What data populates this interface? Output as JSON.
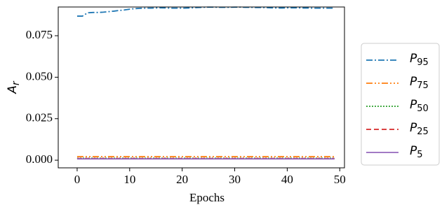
{
  "chart_data": {
    "type": "line",
    "ylabel": "Ar",
    "xlabel": "Epochs",
    "x": [
      0,
      1,
      2,
      3,
      4,
      5,
      6,
      7,
      8,
      9,
      10,
      11,
      12,
      13,
      14,
      15,
      16,
      17,
      18,
      19,
      20,
      21,
      22,
      23,
      24,
      25,
      26,
      27,
      28,
      29,
      30,
      31,
      32,
      33,
      34,
      35,
      36,
      37,
      38,
      39,
      40,
      41,
      42,
      43,
      44,
      45,
      46,
      47,
      48,
      49
    ],
    "series": [
      {
        "name": "P95",
        "color": "#1f77b4",
        "linestyle": "-.",
        "values": [
          0.0868,
          0.0868,
          0.0888,
          0.089,
          0.089,
          0.0892,
          0.0895,
          0.0898,
          0.0902,
          0.0905,
          0.091,
          0.0913,
          0.0915,
          0.0916,
          0.0916,
          0.0917,
          0.0918,
          0.0917,
          0.0916,
          0.0916,
          0.0916,
          0.0917,
          0.0918,
          0.092,
          0.0921,
          0.0922,
          0.0922,
          0.0921,
          0.0921,
          0.0921,
          0.0922,
          0.0922,
          0.0921,
          0.0921,
          0.092,
          0.092,
          0.0919,
          0.0918,
          0.0917,
          0.0917,
          0.0918,
          0.0918,
          0.0918,
          0.0917,
          0.0917,
          0.0916,
          0.0916,
          0.0916,
          0.0916,
          0.0916
        ]
      },
      {
        "name": "P75",
        "color": "#ff7f0e",
        "linestyle": "-..",
        "values": [
          0.0022,
          0.0022,
          0.0022,
          0.0022,
          0.0022,
          0.0022,
          0.0022,
          0.0022,
          0.0022,
          0.0022,
          0.0022,
          0.0022,
          0.0022,
          0.0022,
          0.0022,
          0.0022,
          0.0022,
          0.0022,
          0.0022,
          0.0022,
          0.0022,
          0.0022,
          0.0022,
          0.0022,
          0.0022,
          0.0022,
          0.0022,
          0.0022,
          0.0022,
          0.0022,
          0.0022,
          0.0022,
          0.0022,
          0.0022,
          0.0022,
          0.0022,
          0.0022,
          0.0022,
          0.0022,
          0.0022,
          0.0022,
          0.0022,
          0.0022,
          0.0022,
          0.0022,
          0.0022,
          0.0022,
          0.0022,
          0.0022,
          0.0022
        ]
      },
      {
        "name": "P50",
        "color": "#2ca02c",
        "linestyle": ":",
        "values": [
          0.0012,
          0.0012,
          0.0012,
          0.0012,
          0.0012,
          0.0012,
          0.0012,
          0.0012,
          0.0012,
          0.0012,
          0.0012,
          0.0012,
          0.0012,
          0.0012,
          0.0012,
          0.0012,
          0.0012,
          0.0012,
          0.0012,
          0.0012,
          0.0012,
          0.0012,
          0.0012,
          0.0012,
          0.0012,
          0.0012,
          0.0012,
          0.0012,
          0.0012,
          0.0012,
          0.0012,
          0.0012,
          0.0012,
          0.0012,
          0.0012,
          0.0012,
          0.0012,
          0.0012,
          0.0012,
          0.0012,
          0.0012,
          0.0012,
          0.0012,
          0.0012,
          0.0012,
          0.0012,
          0.0012,
          0.0012,
          0.0012,
          0.0012
        ]
      },
      {
        "name": "P25",
        "color": "#d62728",
        "linestyle": "--",
        "values": [
          0.001,
          0.001,
          0.001,
          0.001,
          0.001,
          0.001,
          0.001,
          0.001,
          0.001,
          0.001,
          0.001,
          0.001,
          0.001,
          0.001,
          0.001,
          0.001,
          0.001,
          0.001,
          0.001,
          0.001,
          0.001,
          0.001,
          0.001,
          0.001,
          0.001,
          0.001,
          0.001,
          0.001,
          0.001,
          0.001,
          0.001,
          0.001,
          0.001,
          0.001,
          0.001,
          0.001,
          0.001,
          0.001,
          0.001,
          0.001,
          0.001,
          0.001,
          0.001,
          0.001,
          0.001,
          0.001,
          0.001,
          0.001,
          0.001,
          0.001
        ]
      },
      {
        "name": "P5",
        "color": "#9467bd",
        "linestyle": "-",
        "values": [
          0.0008,
          0.0008,
          0.0008,
          0.0008,
          0.0008,
          0.0008,
          0.0008,
          0.0008,
          0.0008,
          0.0008,
          0.0008,
          0.0008,
          0.0008,
          0.0008,
          0.0008,
          0.0008,
          0.0008,
          0.0008,
          0.0008,
          0.0008,
          0.0008,
          0.0008,
          0.0008,
          0.0008,
          0.0008,
          0.0008,
          0.0008,
          0.0008,
          0.0008,
          0.0008,
          0.0008,
          0.0008,
          0.0008,
          0.0008,
          0.0008,
          0.0008,
          0.0008,
          0.0008,
          0.0008,
          0.0008,
          0.0008,
          0.0008,
          0.0008,
          0.0008,
          0.0008,
          0.0008,
          0.0008,
          0.0008,
          0.0008,
          0.0008
        ]
      }
    ],
    "xlim": [
      -3.6,
      50.9
    ],
    "xticks": [
      0,
      10,
      20,
      30,
      40,
      50
    ],
    "ylim": [
      -0.0046,
      0.0923
    ],
    "yticks": [
      {
        "value": 0,
        "label": "0.000"
      },
      {
        "value": 0.025,
        "label": "0.025"
      },
      {
        "value": 0.05,
        "label": "0.050"
      },
      {
        "value": 0.075,
        "label": "0.075"
      }
    ],
    "legend": "right"
  }
}
